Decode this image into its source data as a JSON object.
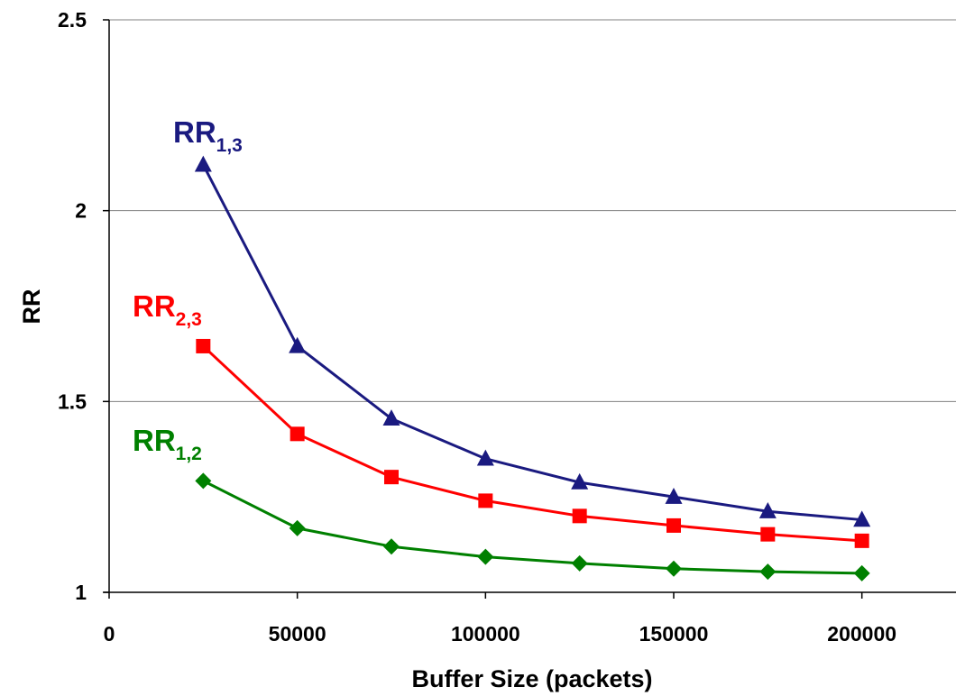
{
  "chart_data": {
    "type": "line",
    "xlabel": "Buffer Size (packets)",
    "ylabel": "RR",
    "xlim": [
      0,
      225000
    ],
    "ylim": [
      1,
      2.5
    ],
    "x_ticks": [
      "0",
      "50000",
      "100000",
      "150000",
      "200000"
    ],
    "x_tick_values": [
      0,
      50000,
      100000,
      150000,
      200000
    ],
    "y_ticks": [
      "1",
      "1.5",
      "2",
      "2.5"
    ],
    "y_tick_values": [
      1,
      1.5,
      2,
      2.5
    ],
    "grid": "horizontal",
    "x": [
      25000,
      50000,
      75000,
      100000,
      125000,
      150000,
      175000,
      200000
    ],
    "series": [
      {
        "name": "RR1,3",
        "label_main": "RR",
        "label_sub": "1,3",
        "color": "#1a1a80",
        "marker": "triangle",
        "values": [
          2.12,
          1.645,
          1.455,
          1.35,
          1.288,
          1.25,
          1.212,
          1.19
        ]
      },
      {
        "name": "RR2,3",
        "label_main": "RR",
        "label_sub": "2,3",
        "color": "#ff0000",
        "marker": "square",
        "values": [
          1.645,
          1.415,
          1.302,
          1.24,
          1.2,
          1.175,
          1.152,
          1.135
        ]
      },
      {
        "name": "RR1,2",
        "label_main": "RR",
        "label_sub": "1,2",
        "color": "#008000",
        "marker": "diamond",
        "values": [
          1.292,
          1.168,
          1.12,
          1.093,
          1.076,
          1.062,
          1.054,
          1.05
        ]
      }
    ]
  }
}
